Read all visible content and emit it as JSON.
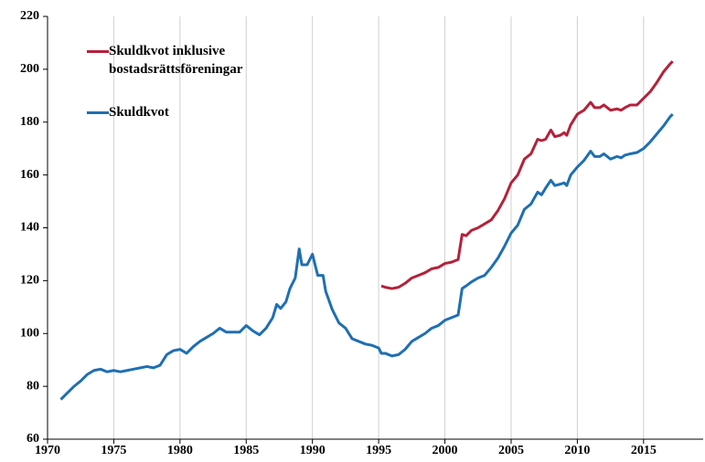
{
  "chart_data": {
    "type": "line",
    "xlim": [
      1970,
      2019.5
    ],
    "xticks": [
      1970,
      1975,
      1980,
      1985,
      1990,
      1995,
      2000,
      2005,
      2010,
      2015
    ],
    "ylim": [
      60,
      220
    ],
    "yticks": [
      60,
      80,
      100,
      120,
      140,
      160,
      180,
      200,
      220
    ],
    "grid": "x",
    "legend": "upper left",
    "series": [
      {
        "name": "Skuldkvot inklusive bostadsrättsföreningar",
        "color": "#b5213a",
        "x": [
          1995.2,
          1995.5,
          1996,
          1996.5,
          1997,
          1997.5,
          1998,
          1998.5,
          1999,
          1999.5,
          2000,
          2000.5,
          2001,
          2001.3,
          2001.6,
          2002,
          2002.5,
          2003,
          2003.5,
          2004,
          2004.5,
          2005,
          2005.5,
          2006,
          2006.5,
          2007,
          2007.3,
          2007.6,
          2008,
          2008.3,
          2008.7,
          2009,
          2009.2,
          2009.5,
          2010,
          2010.5,
          2011,
          2011.3,
          2011.7,
          2012,
          2012.5,
          2013,
          2013.3,
          2013.6,
          2014,
          2014.5,
          2015,
          2015.5,
          2016,
          2016.5,
          2017,
          2017.2
        ],
        "values": [
          118,
          117.5,
          117,
          117.5,
          119,
          121,
          122,
          123,
          124.5,
          125,
          126.5,
          127,
          128,
          137.5,
          137,
          139,
          140,
          141.5,
          143,
          146.5,
          151,
          157,
          160,
          166,
          168,
          173.5,
          173,
          173.5,
          177,
          174.5,
          175,
          176,
          175,
          179,
          183,
          184.5,
          187.5,
          185.5,
          185.5,
          186.5,
          184.5,
          185,
          184.5,
          185.5,
          186.5,
          186.5,
          189,
          191.5,
          195,
          199,
          202,
          203
        ]
      },
      {
        "name": "Skuldkvot",
        "color": "#1f6fb2",
        "x": [
          1971,
          1971.5,
          1972,
          1972.5,
          1973,
          1973.5,
          1974,
          1974.5,
          1975,
          1975.5,
          1976,
          1976.5,
          1977,
          1977.5,
          1978,
          1978.5,
          1979,
          1979.5,
          1980,
          1980.5,
          1981,
          1981.5,
          1982,
          1982.5,
          1983,
          1983.5,
          1984,
          1984.5,
          1985,
          1985.5,
          1986,
          1986.5,
          1987,
          1987.3,
          1987.6,
          1988,
          1988.3,
          1988.7,
          1989,
          1989.2,
          1989.6,
          1990,
          1990.4,
          1990.8,
          1991,
          1991.5,
          1992,
          1992.5,
          1993,
          1993.5,
          1994,
          1994.5,
          1995,
          1995.2,
          1995.5,
          1996,
          1996.5,
          1997,
          1997.5,
          1998,
          1998.5,
          1999,
          1999.5,
          2000,
          2000.5,
          2001,
          2001.3,
          2001.6,
          2002,
          2002.5,
          2003,
          2003.5,
          2004,
          2004.5,
          2005,
          2005.5,
          2006,
          2006.5,
          2007,
          2007.3,
          2007.6,
          2008,
          2008.3,
          2008.7,
          2009,
          2009.2,
          2009.5,
          2010,
          2010.5,
          2011,
          2011.3,
          2011.7,
          2012,
          2012.5,
          2013,
          2013.3,
          2013.6,
          2014,
          2014.5,
          2015,
          2015.5,
          2016,
          2016.5,
          2017,
          2017.2
        ],
        "values": [
          75,
          77.5,
          80,
          82,
          84.5,
          86,
          86.5,
          85.5,
          86,
          85.5,
          86,
          86.5,
          87,
          87.5,
          87,
          88,
          92,
          93.5,
          94,
          92.5,
          95,
          97,
          98.5,
          100,
          102,
          100.5,
          100.5,
          100.5,
          103,
          101,
          99.5,
          102,
          106,
          111,
          109.5,
          112,
          117,
          121,
          132,
          126,
          126,
          130,
          122,
          122,
          116,
          109,
          104,
          102,
          98,
          97,
          96,
          95.5,
          94.5,
          92.5,
          92.5,
          91.5,
          92,
          94,
          97,
          98.5,
          100,
          102,
          103,
          105,
          106,
          107,
          117,
          118,
          119.5,
          121,
          122,
          125,
          128.5,
          133,
          138,
          141,
          147,
          149,
          153.5,
          152.5,
          155,
          158,
          156,
          156.5,
          157,
          156,
          160,
          163,
          165.5,
          169,
          167,
          167,
          168,
          166,
          167,
          166.5,
          167.5,
          168,
          168.5,
          170,
          172.5,
          175.5,
          178.5,
          182,
          183
        ]
      }
    ]
  }
}
